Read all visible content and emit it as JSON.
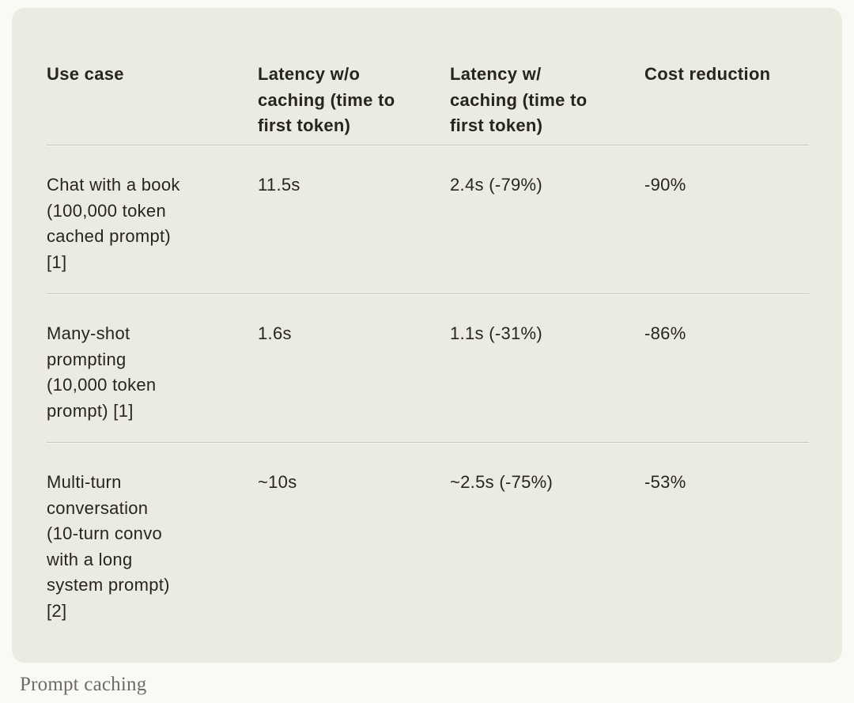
{
  "page": {
    "background_color": "#faf9f5",
    "card_background_color": "#ecebe1",
    "text_color": "#26251f",
    "divider_color": "#c9c8bd",
    "caption_color": "#6d6c62"
  },
  "table": {
    "headers": [
      "Use case",
      "Latency w/o\ncaching (time to\nfirst token)",
      "Latency w/\ncaching (time to\nfirst token)",
      "Cost reduction"
    ],
    "rows": [
      {
        "cells": [
          "Chat with a book\n(100,000 token\ncached prompt)\n[1]",
          "11.5s",
          "2.4s (-79%)",
          "-90%"
        ]
      },
      {
        "cells": [
          "Many-shot\nprompting\n(10,000 token\nprompt) [1]",
          "1.6s",
          "1.1s (-31%)",
          "-86%"
        ]
      },
      {
        "cells": [
          "Multi-turn\nconversation\n(10-turn convo\nwith a long\nsystem prompt)\n[2]",
          "~10s",
          "~2.5s (-75%)",
          "-53%"
        ]
      }
    ]
  },
  "caption": {
    "text": "Prompt caching"
  }
}
